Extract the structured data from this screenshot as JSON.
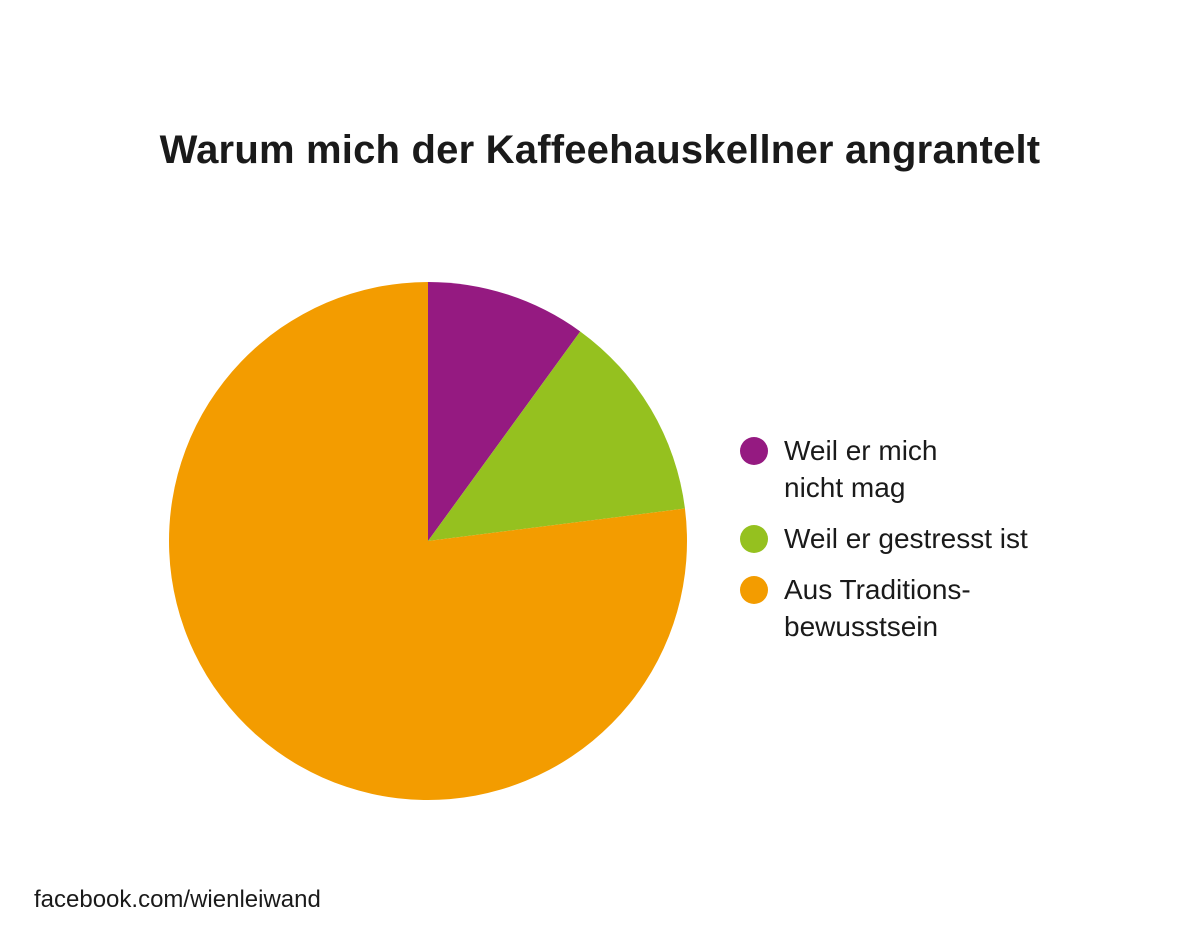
{
  "chart_data": {
    "type": "pie",
    "title": "Warum mich der Kaffeehauskellner angrantelt",
    "legend_position": "right",
    "slices": [
      {
        "label": "Weil er mich\nnicht mag",
        "value": 10,
        "color": "#951a81"
      },
      {
        "label": "Weil er gestresst ist",
        "value": 13,
        "color": "#95c11f"
      },
      {
        "label": "Aus Traditions-\nbewusstsein",
        "value": 77,
        "color": "#f39c00"
      }
    ]
  },
  "footer": {
    "source": "facebook.com/wienleiwand"
  }
}
